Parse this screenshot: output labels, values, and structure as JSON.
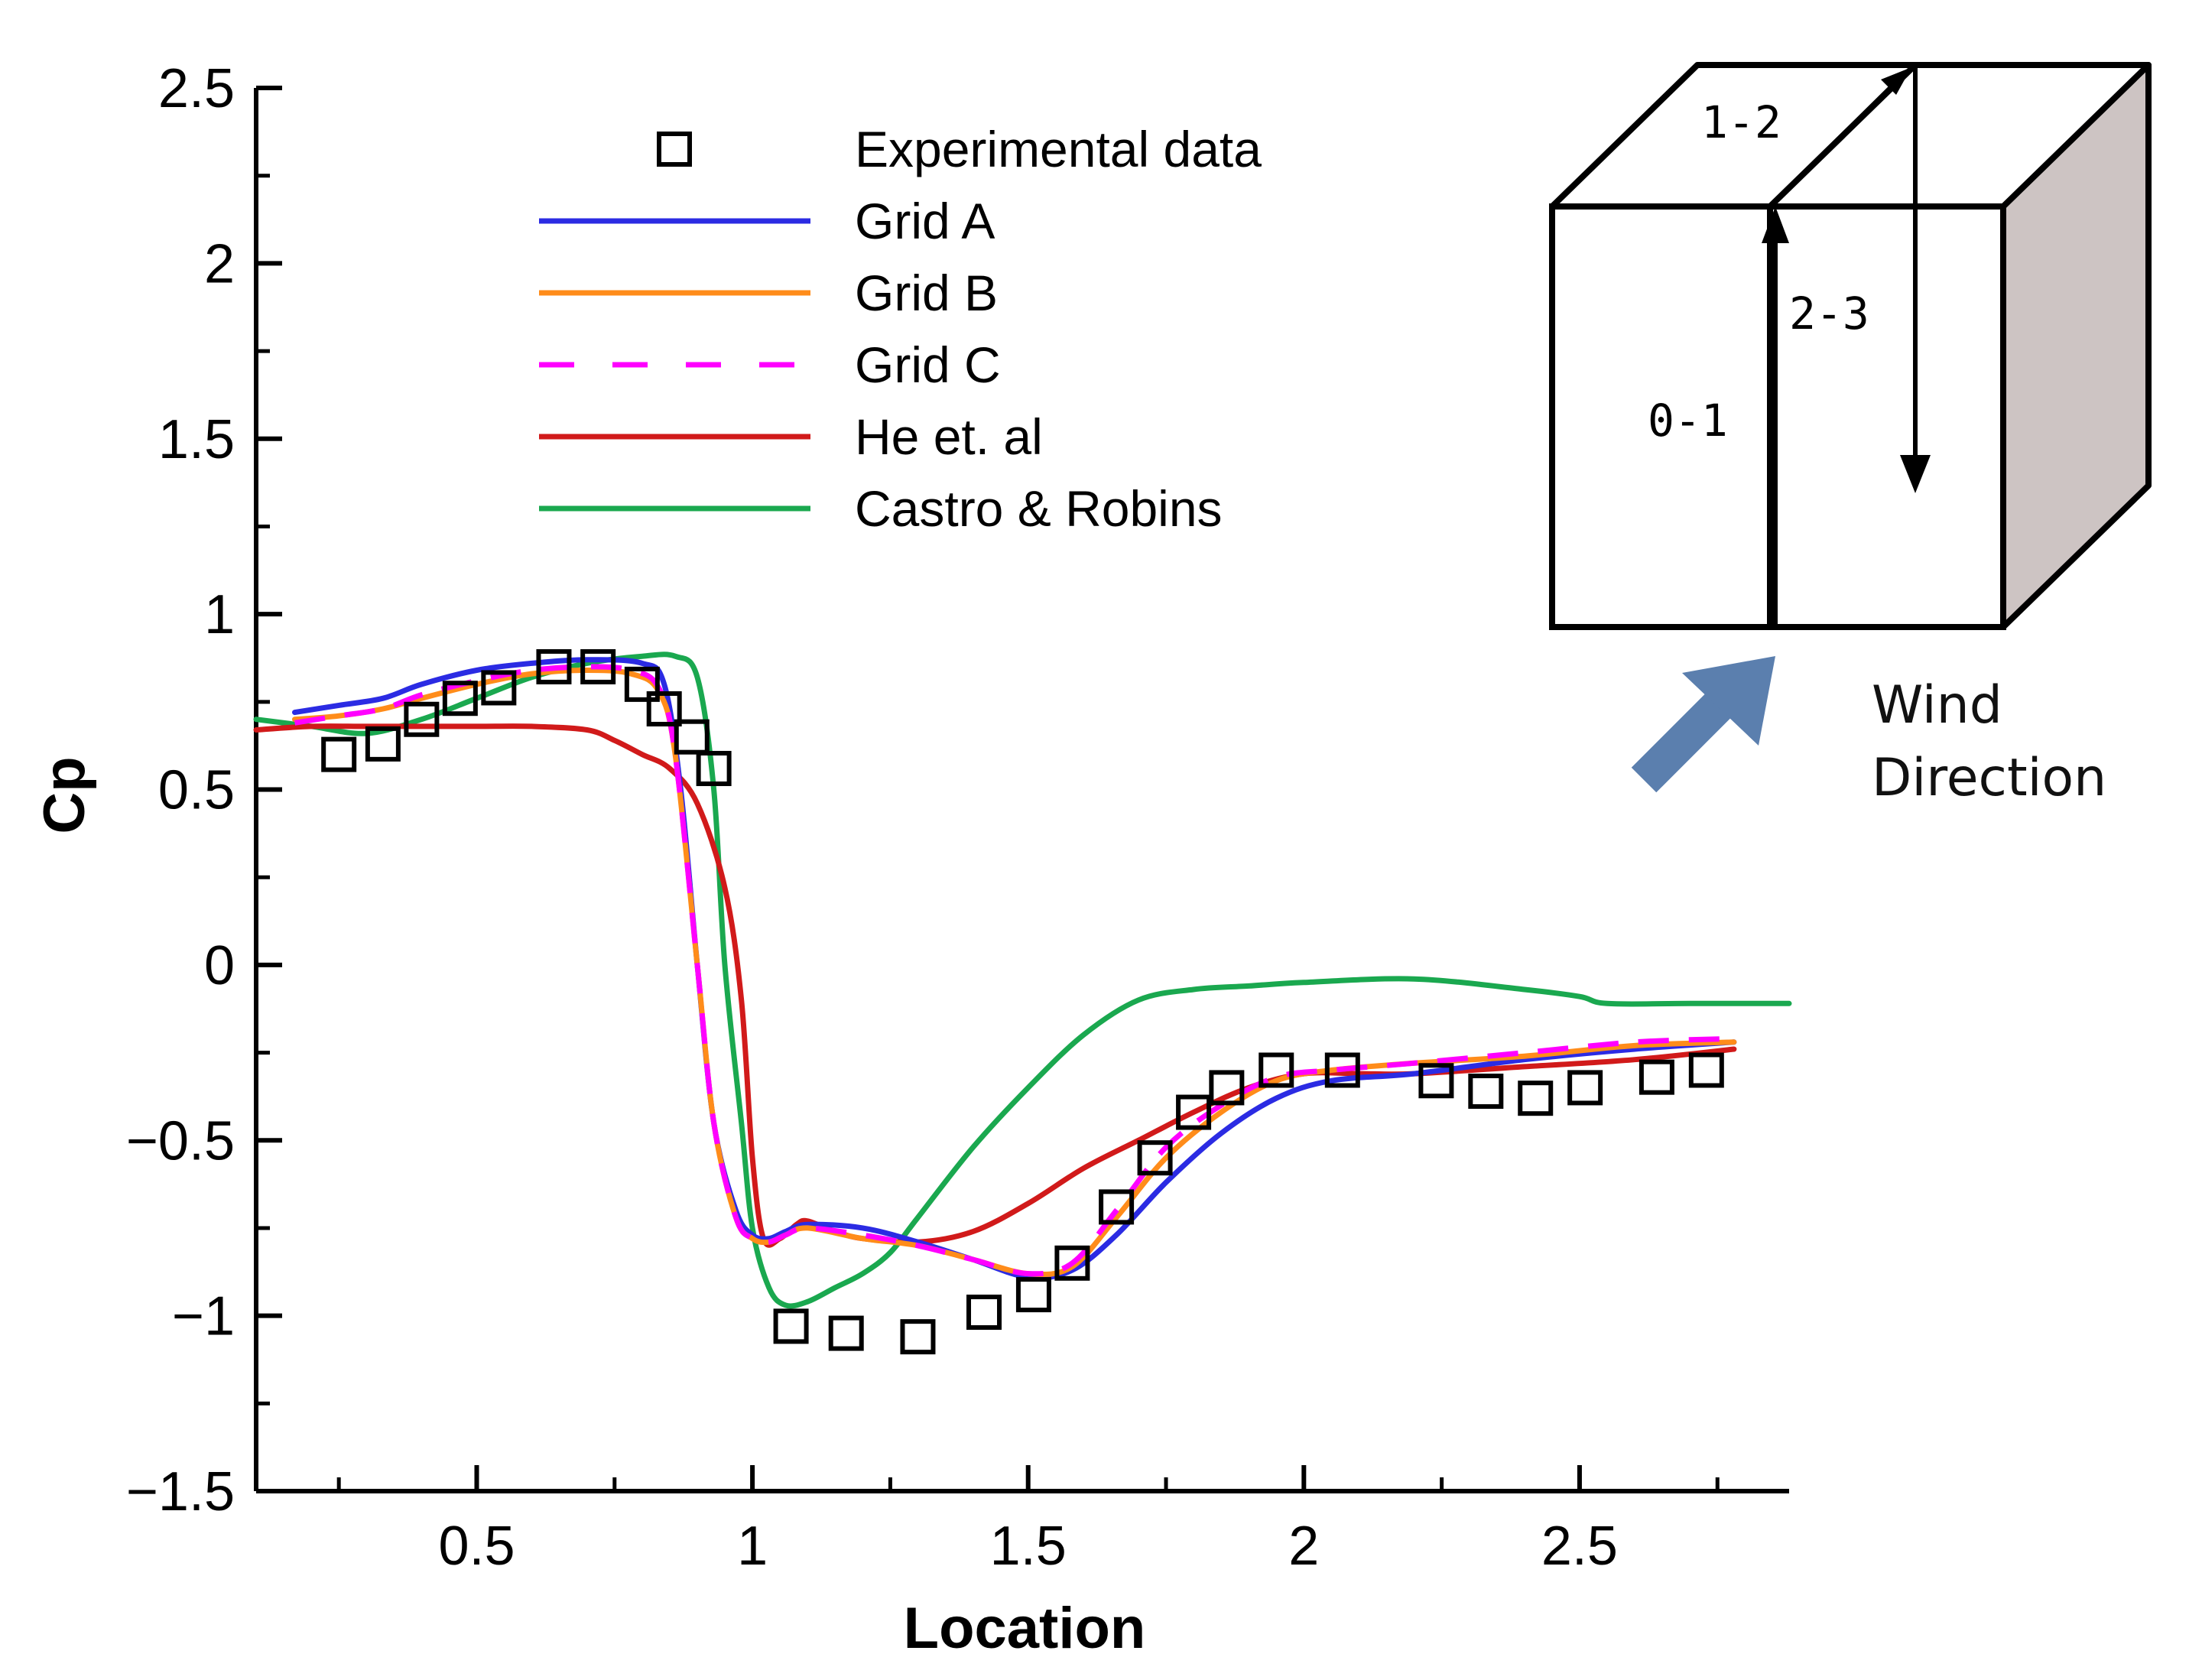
{
  "chart_data": {
    "type": "line",
    "xlabel": "Location",
    "ylabel": "Cp",
    "xlim": [
      0.1,
      2.88
    ],
    "ylim": [
      -1.5,
      2.5
    ],
    "xticks": [
      0.5,
      1,
      1.5,
      2,
      2.5
    ],
    "xtick_labels": [
      "0.5",
      "1",
      "1.5",
      "2",
      "2.5"
    ],
    "yticks": [
      -1.5,
      -1,
      -0.5,
      0,
      0.5,
      1,
      1.5,
      2,
      2.5
    ],
    "ytick_labels": [
      "−1.5",
      "−1",
      "−0.5",
      "0",
      "0.5",
      "1",
      "1.5",
      "2",
      "2.5"
    ],
    "grid": false,
    "legend_position": "top-center",
    "series": [
      {
        "name": "Experimental data",
        "kind": "markers",
        "marker": "square",
        "color": "#000000",
        "x": [
          0.25,
          0.33,
          0.4,
          0.47,
          0.54,
          0.64,
          0.72,
          0.8,
          0.84,
          0.89,
          0.93,
          1.07,
          1.17,
          1.3,
          1.42,
          1.51,
          1.58,
          1.66,
          1.73,
          1.8,
          1.86,
          1.95,
          2.07,
          2.24,
          2.33,
          2.42,
          2.51,
          2.64,
          2.73
        ],
        "y": [
          0.6,
          0.63,
          0.7,
          0.76,
          0.79,
          0.85,
          0.85,
          0.8,
          0.73,
          0.65,
          0.56,
          -1.03,
          -1.05,
          -1.06,
          -0.99,
          -0.94,
          -0.85,
          -0.69,
          -0.55,
          -0.42,
          -0.35,
          -0.3,
          -0.3,
          -0.33,
          -0.36,
          -0.38,
          -0.35,
          -0.32,
          -0.3
        ]
      },
      {
        "name": "Grid A",
        "kind": "line",
        "dash": "solid",
        "color": "#2b2be3",
        "x": [
          0.17,
          0.25,
          0.33,
          0.4,
          0.5,
          0.6,
          0.7,
          0.8,
          0.84,
          0.87,
          0.9,
          0.93,
          0.97,
          1.0,
          1.03,
          1.06,
          1.1,
          1.2,
          1.3,
          1.4,
          1.5,
          1.58,
          1.66,
          1.75,
          1.85,
          1.95,
          2.05,
          2.2,
          2.4,
          2.6,
          2.78
        ],
        "y": [
          0.72,
          0.74,
          0.76,
          0.8,
          0.84,
          0.86,
          0.87,
          0.86,
          0.8,
          0.5,
          0.0,
          -0.45,
          -0.7,
          -0.77,
          -0.78,
          -0.76,
          -0.74,
          -0.75,
          -0.79,
          -0.84,
          -0.89,
          -0.87,
          -0.77,
          -0.62,
          -0.48,
          -0.38,
          -0.33,
          -0.31,
          -0.27,
          -0.24,
          -0.22
        ]
      },
      {
        "name": "Grid B",
        "kind": "line",
        "dash": "solid",
        "color": "#ff8c1a",
        "x": [
          0.17,
          0.25,
          0.33,
          0.4,
          0.5,
          0.6,
          0.7,
          0.78,
          0.83,
          0.86,
          0.9,
          0.93,
          0.97,
          1.0,
          1.03,
          1.06,
          1.1,
          1.2,
          1.3,
          1.4,
          1.5,
          1.58,
          1.66,
          1.75,
          1.85,
          1.95,
          2.05,
          2.2,
          2.4,
          2.6,
          2.78
        ],
        "y": [
          0.7,
          0.71,
          0.73,
          0.76,
          0.8,
          0.83,
          0.84,
          0.83,
          0.78,
          0.6,
          0.0,
          -0.45,
          -0.72,
          -0.78,
          -0.79,
          -0.77,
          -0.75,
          -0.78,
          -0.8,
          -0.84,
          -0.88,
          -0.86,
          -0.72,
          -0.55,
          -0.42,
          -0.33,
          -0.3,
          -0.28,
          -0.26,
          -0.23,
          -0.22
        ]
      },
      {
        "name": "Grid C",
        "kind": "line",
        "dash": "dashed",
        "color": "#ff00ff",
        "x": [
          0.17,
          0.25,
          0.33,
          0.4,
          0.5,
          0.6,
          0.7,
          0.78,
          0.83,
          0.86,
          0.9,
          0.93,
          0.97,
          1.0,
          1.03,
          1.06,
          1.1,
          1.2,
          1.3,
          1.4,
          1.5,
          1.58,
          1.66,
          1.75,
          1.85,
          1.95,
          2.05,
          2.2,
          2.4,
          2.6,
          2.78
        ],
        "y": [
          0.69,
          0.71,
          0.73,
          0.77,
          0.81,
          0.84,
          0.85,
          0.84,
          0.79,
          0.6,
          0.0,
          -0.45,
          -0.72,
          -0.78,
          -0.79,
          -0.77,
          -0.75,
          -0.77,
          -0.8,
          -0.84,
          -0.88,
          -0.85,
          -0.7,
          -0.52,
          -0.4,
          -0.32,
          -0.3,
          -0.28,
          -0.25,
          -0.22,
          -0.21
        ]
      },
      {
        "name": "He et. al",
        "kind": "line",
        "dash": "solid",
        "color": "#d11a1a",
        "x": [
          0.1,
          0.2,
          0.3,
          0.4,
          0.5,
          0.6,
          0.7,
          0.75,
          0.8,
          0.85,
          0.9,
          0.95,
          0.98,
          1.0,
          1.02,
          1.05,
          1.08,
          1.1,
          1.15,
          1.2,
          1.3,
          1.4,
          1.5,
          1.6,
          1.7,
          1.8,
          1.9,
          2.0,
          2.1,
          2.2,
          2.4,
          2.6,
          2.78
        ],
        "y": [
          0.67,
          0.68,
          0.68,
          0.68,
          0.68,
          0.68,
          0.67,
          0.64,
          0.6,
          0.56,
          0.46,
          0.22,
          -0.1,
          -0.55,
          -0.78,
          -0.78,
          -0.74,
          -0.73,
          -0.76,
          -0.78,
          -0.79,
          -0.76,
          -0.68,
          -0.58,
          -0.5,
          -0.42,
          -0.35,
          -0.31,
          -0.31,
          -0.31,
          -0.29,
          -0.27,
          -0.24
        ]
      },
      {
        "name": "Castro & Robins",
        "kind": "line",
        "dash": "solid",
        "color": "#1aa84f",
        "x": [
          0.1,
          0.2,
          0.3,
          0.4,
          0.5,
          0.6,
          0.7,
          0.8,
          0.86,
          0.9,
          0.93,
          0.95,
          0.98,
          1.0,
          1.03,
          1.06,
          1.1,
          1.15,
          1.2,
          1.25,
          1.3,
          1.4,
          1.5,
          1.6,
          1.7,
          1.8,
          1.9,
          2.0,
          2.2,
          2.4,
          2.5,
          2.55,
          2.7,
          2.88
        ],
        "y": [
          0.7,
          0.68,
          0.66,
          0.7,
          0.76,
          0.82,
          0.86,
          0.88,
          0.88,
          0.82,
          0.5,
          0.0,
          -0.45,
          -0.75,
          -0.92,
          -0.97,
          -0.96,
          -0.92,
          -0.88,
          -0.82,
          -0.72,
          -0.52,
          -0.35,
          -0.2,
          -0.1,
          -0.07,
          -0.06,
          -0.05,
          -0.04,
          -0.07,
          -0.09,
          -0.11,
          -0.11,
          -0.11
        ]
      }
    ]
  },
  "inset": {
    "segment_labels": [
      "1-2",
      "2-3",
      "0-1"
    ],
    "wind_label_line1": "Wind",
    "wind_label_line2": "Direction",
    "wind_arrow_color": "#5b7fae",
    "box_side_color": "#cdc4c3"
  }
}
